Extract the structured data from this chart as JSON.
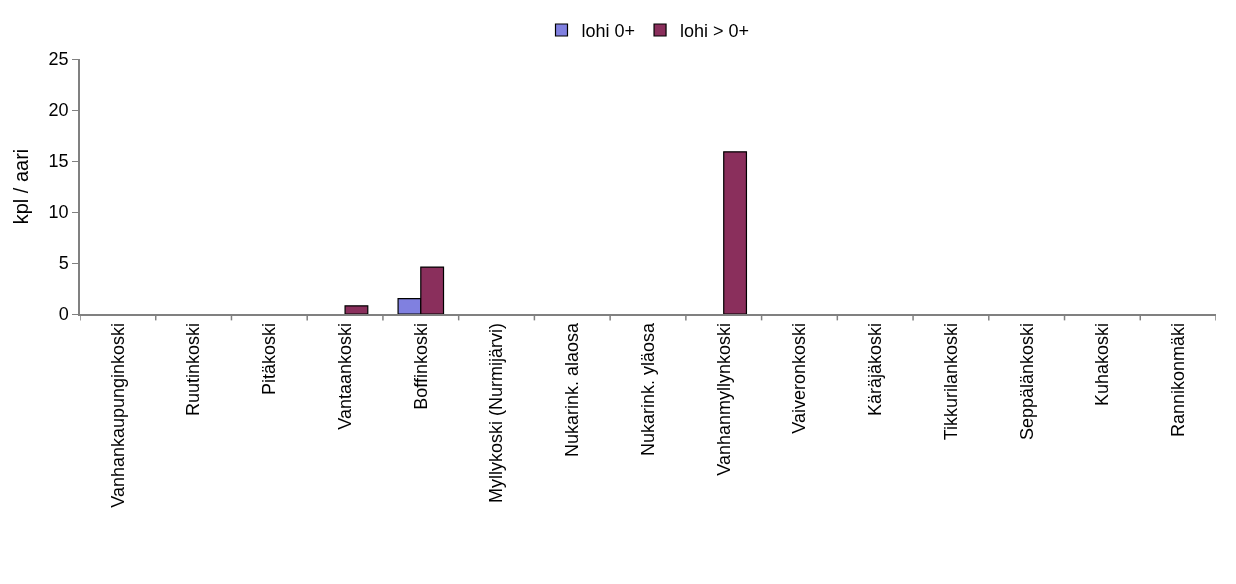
{
  "chart_data": {
    "type": "bar",
    "ylabel": "kpl / aari",
    "categories": [
      "Vanhankaupunginkoski",
      "Ruutinkoski",
      "Pitäkoski",
      "Vantaankoski",
      "Boffinkoski",
      "Myllykoski (Nurmijärvi)",
      "Nukarink. alaosa",
      "Nukarink. yläosa",
      "Vanhanmyllynkoski",
      "Vaiveronkoski",
      "Käräjäkoski",
      "Tikkurilankoski",
      "Seppälänkoski",
      "Kuhakoski",
      "Rannikonmäki"
    ],
    "series": [
      {
        "name": "lohi 0+",
        "color": "#8080e0",
        "values": [
          null,
          null,
          null,
          null,
          1.5,
          null,
          null,
          null,
          null,
          null,
          null,
          null,
          null,
          null,
          null
        ]
      },
      {
        "name": "lohi > 0+",
        "color": "#8a2f5c",
        "values": [
          null,
          null,
          null,
          0.8,
          4.6,
          null,
          null,
          null,
          15.9,
          null,
          null,
          null,
          null,
          null,
          null
        ]
      }
    ],
    "ylim": [
      0,
      25
    ],
    "yticks": [
      0,
      5,
      10,
      15,
      20,
      25
    ],
    "legend": "top"
  }
}
